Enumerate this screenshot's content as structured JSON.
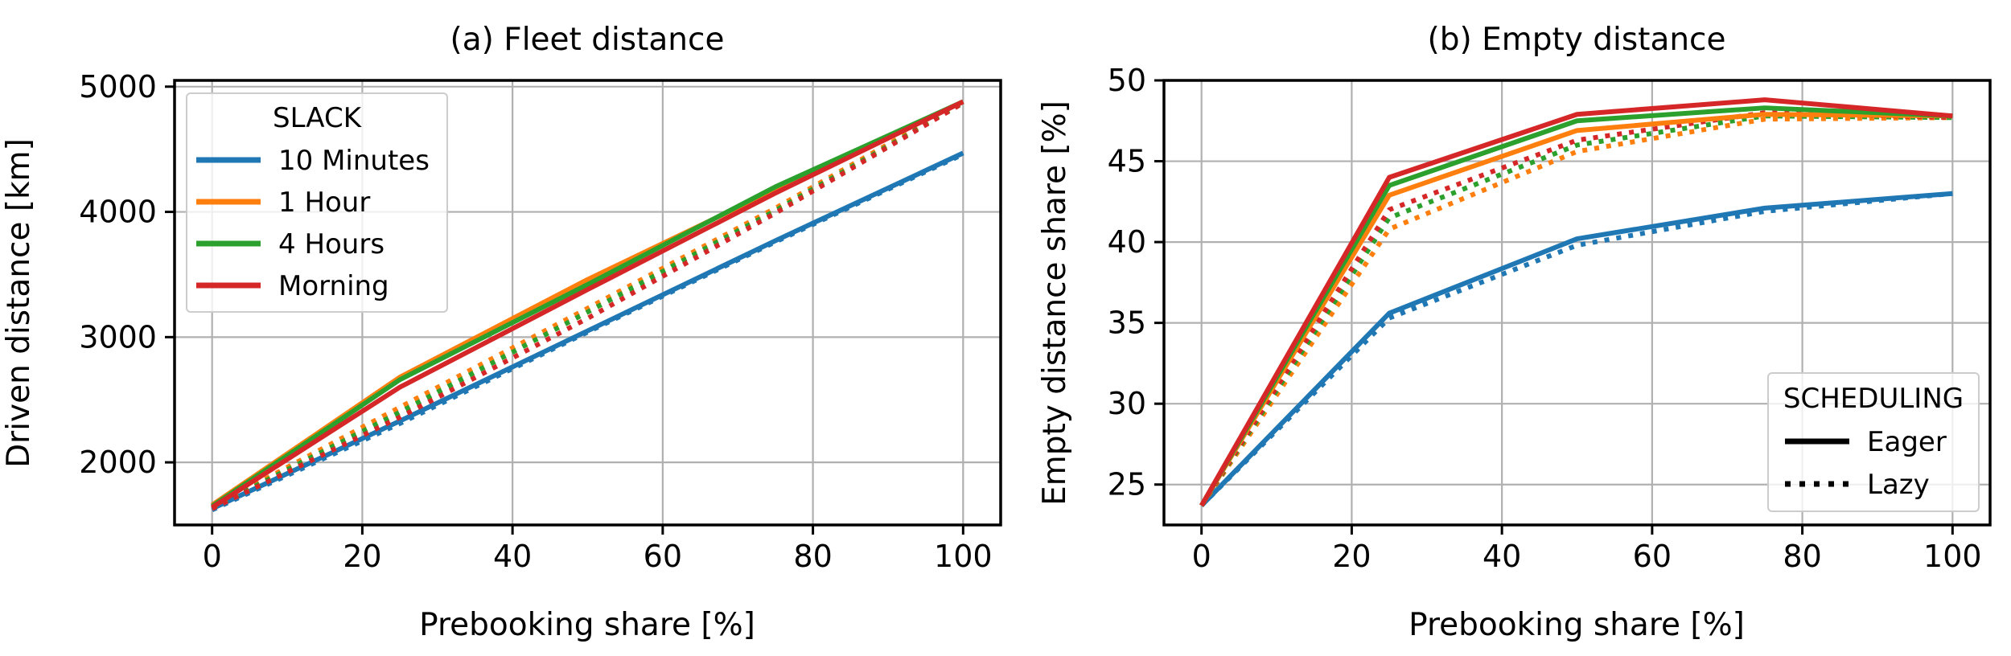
{
  "chart_data": [
    {
      "type": "line",
      "title": "(a) Fleet distance",
      "xlabel": "Prebooking share [%]",
      "ylabel": "Driven distance [km]",
      "xlim": [
        -5,
        105
      ],
      "ylim": [
        1500,
        5050
      ],
      "xticks": [
        0,
        20,
        40,
        60,
        80,
        100
      ],
      "yticks": [
        2000,
        3000,
        4000,
        5000
      ],
      "grid": true,
      "x": [
        0,
        25,
        50,
        75,
        100
      ],
      "legend": {
        "title": "SLACK",
        "placement": "upper-left",
        "entries": [
          {
            "label": "10 Minutes",
            "color": "#1f77b4"
          },
          {
            "label": "1 Hour",
            "color": "#ff7f0e"
          },
          {
            "label": "4 Hours",
            "color": "#2ca02c"
          },
          {
            "label": "Morning",
            "color": "#d62728"
          }
        ]
      },
      "series": [
        {
          "name": "10 Minutes / Eager",
          "color": "#1f77b4",
          "style": "solid",
          "values": [
            1630,
            2330,
            3050,
            3770,
            4470
          ]
        },
        {
          "name": "10 Minutes / Lazy",
          "color": "#1f77b4",
          "style": "dotted",
          "values": [
            1620,
            2310,
            3040,
            3760,
            4460
          ]
        },
        {
          "name": "1 Hour / Lazy",
          "color": "#ff7f0e",
          "style": "dotted",
          "values": [
            1640,
            2440,
            3230,
            4030,
            4880
          ]
        },
        {
          "name": "4 Hours / Lazy",
          "color": "#2ca02c",
          "style": "dotted",
          "values": [
            1635,
            2400,
            3200,
            4010,
            4870
          ]
        },
        {
          "name": "Morning / Lazy",
          "color": "#d62728",
          "style": "dotted",
          "values": [
            1630,
            2360,
            3150,
            3990,
            4870
          ]
        },
        {
          "name": "1 Hour / Eager",
          "color": "#ff7f0e",
          "style": "solid",
          "values": [
            1660,
            2680,
            3460,
            4180,
            4880
          ]
        },
        {
          "name": "4 Hours / Eager",
          "color": "#2ca02c",
          "style": "solid",
          "values": [
            1650,
            2660,
            3420,
            4200,
            4880
          ]
        },
        {
          "name": "Morning / Eager",
          "color": "#d62728",
          "style": "solid",
          "values": [
            1640,
            2600,
            3380,
            4150,
            4880
          ]
        }
      ]
    },
    {
      "type": "line",
      "title": "(b) Empty distance",
      "xlabel": "Prebooking share [%]",
      "ylabel": "Empty distance share [%]",
      "xlim": [
        -5,
        105
      ],
      "ylim": [
        22.5,
        50.0
      ],
      "xticks": [
        0,
        20,
        40,
        60,
        80,
        100
      ],
      "yticks": [
        25,
        30,
        35,
        40,
        45,
        50
      ],
      "grid": true,
      "x": [
        0,
        25,
        50,
        75,
        100
      ],
      "legend": {
        "title": "SCHEDULING",
        "placement": "lower-right",
        "entries": [
          {
            "label": "Eager",
            "style": "solid"
          },
          {
            "label": "Lazy",
            "style": "dotted"
          }
        ]
      },
      "series": [
        {
          "name": "10 Minutes / Lazy",
          "color": "#1f77b4",
          "style": "dotted",
          "values": [
            23.7,
            35.3,
            39.8,
            41.9,
            43.0
          ]
        },
        {
          "name": "10 Minutes / Eager",
          "color": "#1f77b4",
          "style": "solid",
          "values": [
            23.7,
            35.6,
            40.2,
            42.1,
            43.0
          ]
        },
        {
          "name": "1 Hour / Lazy",
          "color": "#ff7f0e",
          "style": "dotted",
          "values": [
            23.7,
            40.8,
            45.6,
            47.6,
            47.7
          ]
        },
        {
          "name": "4 Hours / Lazy",
          "color": "#2ca02c",
          "style": "dotted",
          "values": [
            23.7,
            41.5,
            46.0,
            47.8,
            47.7
          ]
        },
        {
          "name": "Morning / Lazy",
          "color": "#d62728",
          "style": "dotted",
          "values": [
            23.7,
            42.0,
            46.3,
            48.0,
            47.7
          ]
        },
        {
          "name": "1 Hour / Eager",
          "color": "#ff7f0e",
          "style": "solid",
          "values": [
            23.7,
            42.9,
            46.9,
            47.9,
            47.8
          ]
        },
        {
          "name": "4 Hours / Eager",
          "color": "#2ca02c",
          "style": "solid",
          "values": [
            23.7,
            43.5,
            47.5,
            48.3,
            47.8
          ]
        },
        {
          "name": "Morning / Eager",
          "color": "#d62728",
          "style": "solid",
          "values": [
            23.7,
            44.0,
            47.9,
            48.8,
            47.8
          ]
        }
      ]
    }
  ]
}
